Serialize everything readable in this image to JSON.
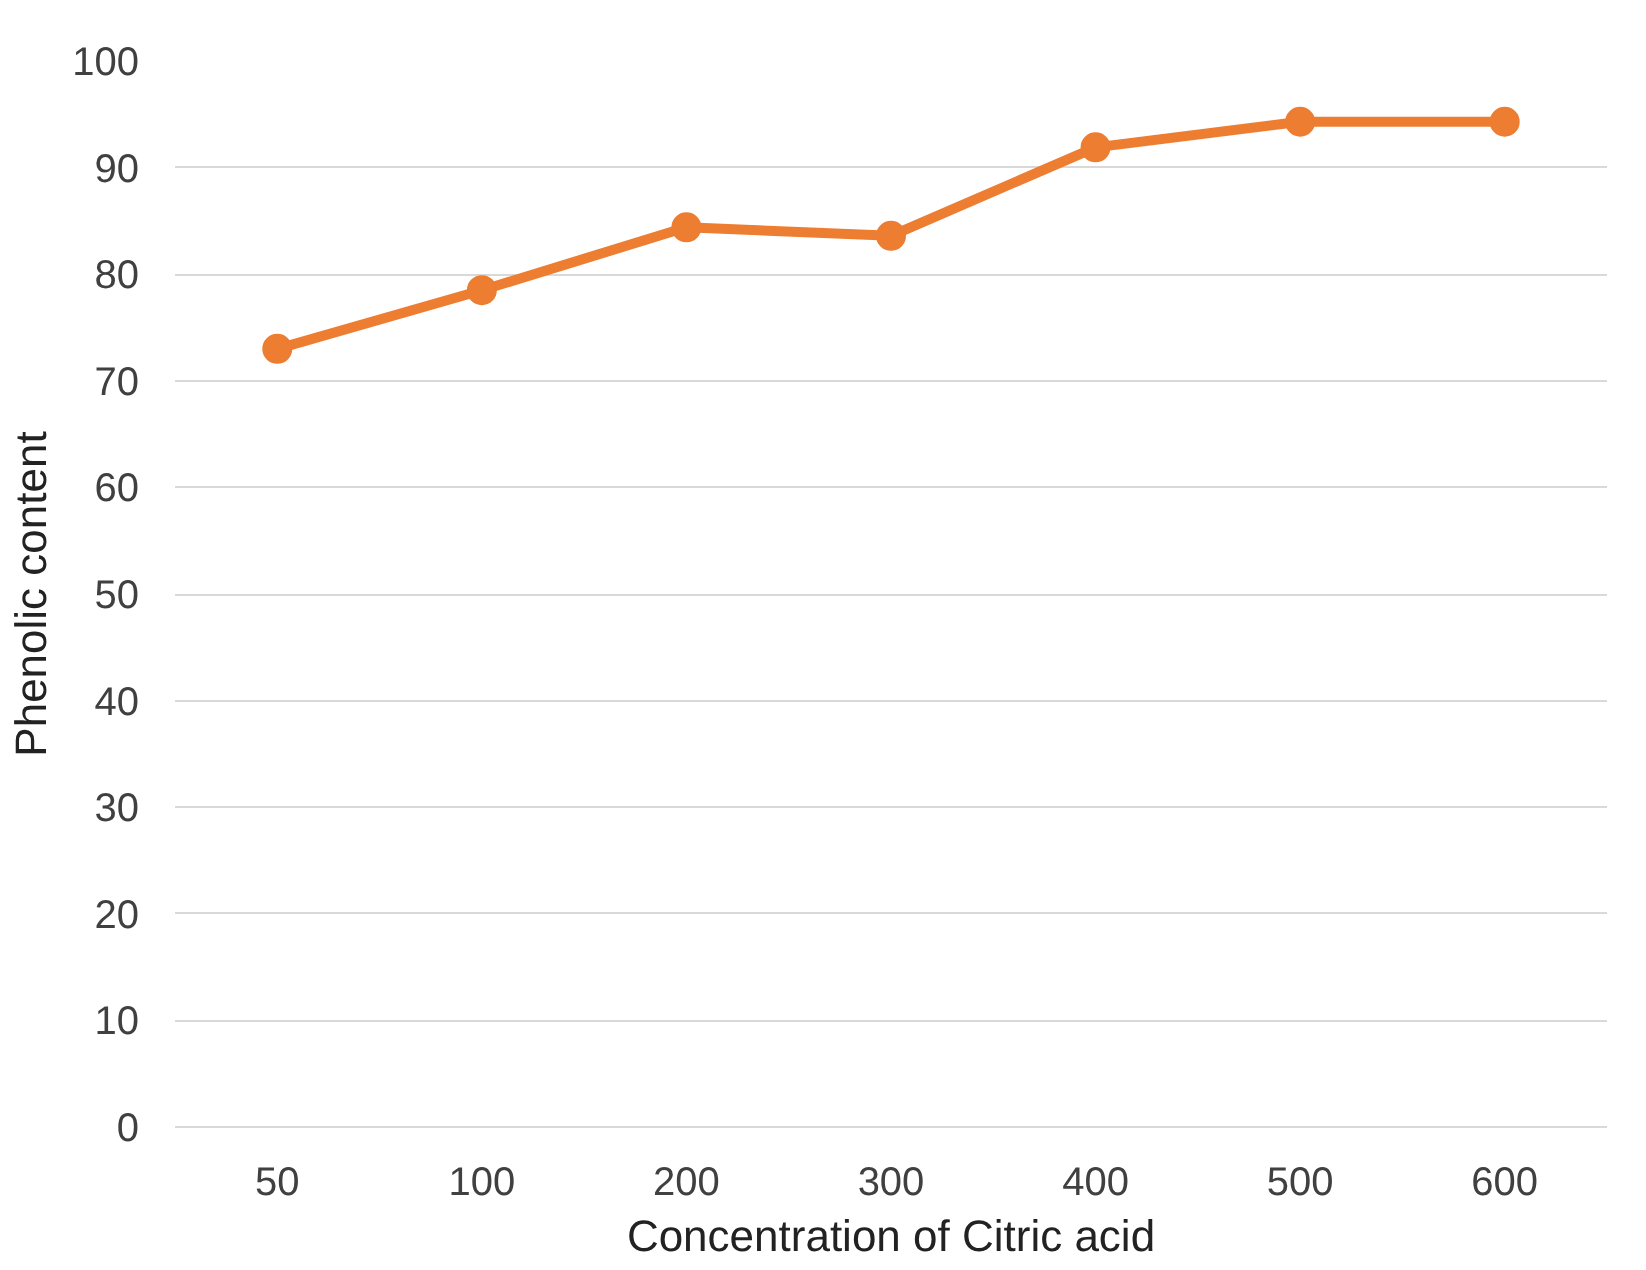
{
  "chart_data": {
    "type": "line",
    "xlabel": "Concentration of Citric acid",
    "ylabel": "Phenolic content",
    "categories": [
      "50",
      "100",
      "200",
      "300",
      "400",
      "500",
      "600"
    ],
    "series": [
      {
        "color": "#ed7d31",
        "values": [
          73.0,
          78.5,
          84.4,
          83.6,
          91.9,
          94.3,
          94.3
        ]
      }
    ],
    "ylim": [
      0,
      100
    ],
    "yticks": [
      0,
      10,
      20,
      30,
      40,
      50,
      60,
      70,
      80,
      90,
      100
    ],
    "grid": "y",
    "marker": "circle",
    "line_style": "solid"
  }
}
